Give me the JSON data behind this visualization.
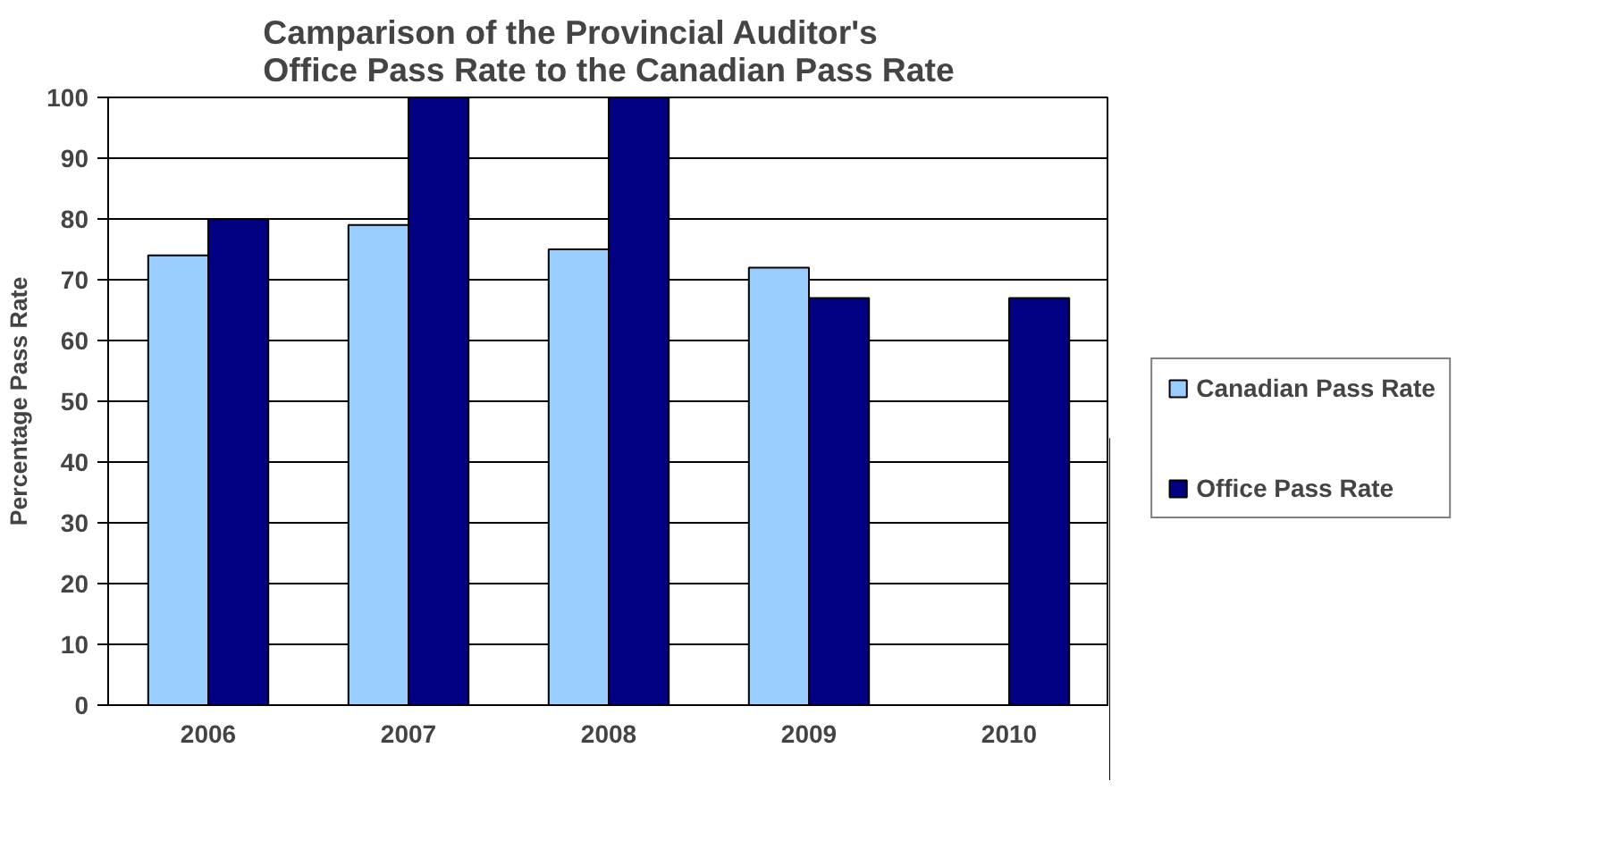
{
  "chart_data": {
    "type": "bar",
    "title": "Camparison of the Provincial Auditor's Office Pass Rate to the Canadian Pass Rate",
    "ylabel": "Percentage Pass Rate",
    "categories": [
      "2006",
      "2007",
      "2008",
      "2009",
      "2010"
    ],
    "series": [
      {
        "name": "Canadian Pass Rate",
        "color": "#99ccff",
        "values": [
          74,
          79,
          75,
          72,
          null
        ]
      },
      {
        "name": "Office Pass Rate",
        "color": "#000080",
        "values": [
          80,
          100,
          100,
          67,
          67
        ]
      }
    ],
    "ylim": [
      0,
      100
    ],
    "yticks": [
      0,
      10,
      20,
      30,
      40,
      50,
      60,
      70,
      80,
      90,
      100
    ],
    "grid": "y",
    "legend": "right"
  }
}
